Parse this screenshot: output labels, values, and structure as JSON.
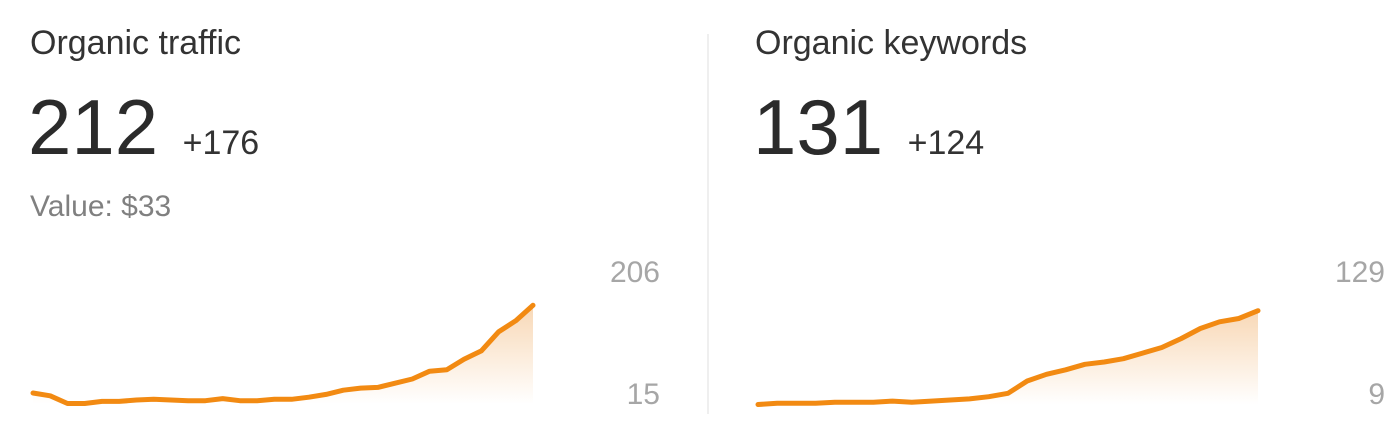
{
  "panels": [
    {
      "title": "Organic traffic",
      "value": "212",
      "delta": "+176",
      "value_note": "Value: $33"
    },
    {
      "title": "Organic keywords",
      "value": "131",
      "delta": "+124"
    }
  ],
  "colors": {
    "line": "#f28a12",
    "fill_top": "#f8d8b6",
    "fill_bottom": "#ffffff",
    "divider": "#efefef"
  },
  "chart_data": [
    {
      "type": "area",
      "title": "Organic traffic",
      "y_ticks": [
        "206",
        "15"
      ],
      "ylim": [
        15,
        206
      ],
      "values": [
        25,
        21,
        10,
        10,
        13,
        13,
        15,
        16,
        15,
        14,
        14,
        17,
        14,
        14,
        16,
        16,
        19,
        23,
        29,
        32,
        33,
        39,
        45,
        56,
        58,
        73,
        85,
        112,
        128,
        150
      ]
    },
    {
      "type": "area",
      "title": "Organic keywords",
      "y_ticks": [
        "129",
        "9"
      ],
      "ylim": [
        9,
        129
      ],
      "values": [
        5,
        6,
        6,
        6,
        7,
        7,
        7,
        8,
        7,
        8,
        9,
        10,
        12,
        15,
        26,
        32,
        36,
        41,
        43,
        46,
        51,
        56,
        64,
        73,
        79,
        82,
        89
      ]
    }
  ]
}
